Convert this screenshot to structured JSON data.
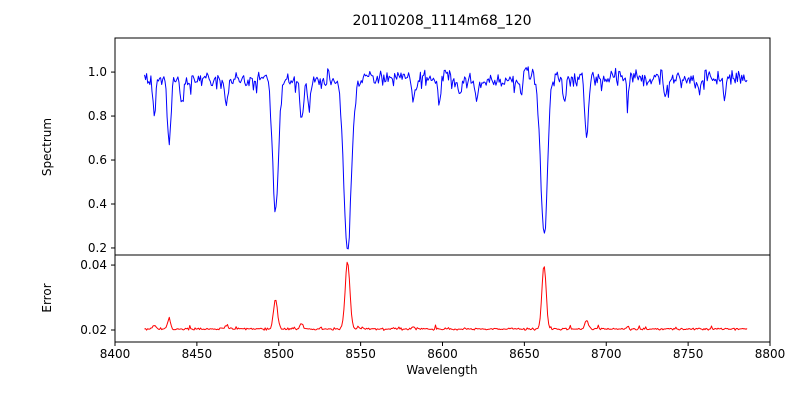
{
  "chart_data": [
    {
      "type": "line",
      "panel": "top",
      "title": "20110208_1114m68_120",
      "ylabel": "Spectrum",
      "series_name": "spectrum",
      "color": "#0000ff",
      "grid": false,
      "legend": "none",
      "xlim": [
        8400,
        8800
      ],
      "ylim": [
        0.168,
        1.155
      ],
      "yticks": [
        0.2,
        0.4,
        0.6,
        0.8,
        1.0
      ],
      "ytick_labels": [
        "0.2",
        "0.4",
        "0.6",
        "0.8",
        "1.0"
      ],
      "x_start": 8418,
      "x_end": 8786,
      "n_points": 560,
      "continuum": 0.97,
      "noise_amplitude": 0.05,
      "absorption_lines": [
        {
          "center": 8424,
          "depth": 0.14,
          "sigma": 0.9
        },
        {
          "center": 8433,
          "depth": 0.31,
          "sigma": 1.1
        },
        {
          "center": 8441,
          "depth": 0.12,
          "sigma": 0.8
        },
        {
          "center": 8468,
          "depth": 0.13,
          "sigma": 0.9
        },
        {
          "center": 8498,
          "depth": 0.6,
          "sigma": 1.8
        },
        {
          "center": 8514,
          "depth": 0.19,
          "sigma": 1.0
        },
        {
          "center": 8518.5,
          "depth": 0.14,
          "sigma": 0.9
        },
        {
          "center": 8542,
          "depth": 0.77,
          "sigma": 2.3
        },
        {
          "center": 8582,
          "depth": 0.11,
          "sigma": 0.9
        },
        {
          "center": 8598,
          "depth": 0.09,
          "sigma": 0.8
        },
        {
          "center": 8611,
          "depth": 0.08,
          "sigma": 0.8
        },
        {
          "center": 8621,
          "depth": 0.1,
          "sigma": 0.8
        },
        {
          "center": 8648,
          "depth": 0.09,
          "sigma": 0.8
        },
        {
          "center": 8662,
          "depth": 0.72,
          "sigma": 2.0
        },
        {
          "center": 8674.5,
          "depth": 0.12,
          "sigma": 0.9
        },
        {
          "center": 8688,
          "depth": 0.29,
          "sigma": 1.1
        },
        {
          "center": 8713,
          "depth": 0.09,
          "sigma": 0.8
        },
        {
          "center": 8736,
          "depth": 0.08,
          "sigma": 0.8
        },
        {
          "center": 8757,
          "depth": 0.08,
          "sigma": 0.8
        },
        {
          "center": 8772,
          "depth": 0.09,
          "sigma": 0.8
        }
      ]
    },
    {
      "type": "line",
      "panel": "bottom",
      "ylabel": "Error",
      "xlabel": "Wavelength",
      "series_name": "error",
      "color": "#ff0000",
      "grid": false,
      "legend": "none",
      "xlim": [
        8400,
        8800
      ],
      "ylim": [
        0.0163,
        0.0431
      ],
      "yticks": [
        0.02,
        0.04
      ],
      "ytick_labels": [
        "0.02",
        "0.04"
      ],
      "xticks": [
        8400,
        8450,
        8500,
        8550,
        8600,
        8650,
        8700,
        8750,
        8800
      ],
      "xtick_labels": [
        "8400",
        "8450",
        "8500",
        "8550",
        "8600",
        "8650",
        "8700",
        "8750",
        "8800"
      ],
      "baseline": 0.0203,
      "noise_amplitude": 0.0005,
      "spikes": [
        {
          "center": 8424,
          "amp": 0.0012,
          "sigma": 0.9
        },
        {
          "center": 8433,
          "amp": 0.0028,
          "sigma": 1.0
        },
        {
          "center": 8468,
          "amp": 0.001,
          "sigma": 0.9
        },
        {
          "center": 8498,
          "amp": 0.0092,
          "sigma": 1.2
        },
        {
          "center": 8514,
          "amp": 0.0018,
          "sigma": 0.9
        },
        {
          "center": 8542,
          "amp": 0.0208,
          "sigma": 1.4
        },
        {
          "center": 8582,
          "amp": 0.0008,
          "sigma": 0.8
        },
        {
          "center": 8662,
          "amp": 0.0195,
          "sigma": 1.3
        },
        {
          "center": 8688,
          "amp": 0.0026,
          "sigma": 1.0
        },
        {
          "center": 8713,
          "amp": 0.0008,
          "sigma": 0.8
        }
      ]
    }
  ]
}
